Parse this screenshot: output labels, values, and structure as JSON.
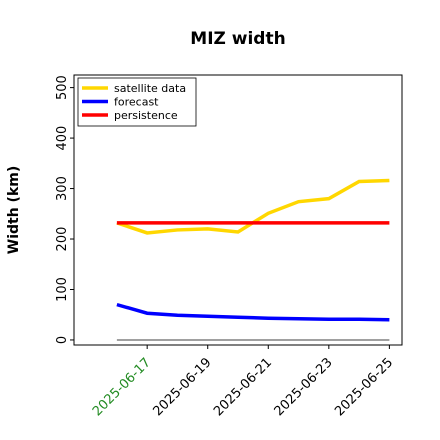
{
  "chart_data": {
    "type": "line",
    "title": "MIZ width",
    "ylabel": "Width (km)",
    "x": [
      "2025-06-16",
      "2025-06-17",
      "2025-06-18",
      "2025-06-19",
      "2025-06-20",
      "2025-06-21",
      "2025-06-22",
      "2025-06-23",
      "2025-06-24",
      "2025-06-25"
    ],
    "series": [
      {
        "name": "satellite data",
        "color": "#ffd700",
        "values": [
          232,
          212,
          218,
          220,
          214,
          251,
          274,
          280,
          314,
          316
        ]
      },
      {
        "name": "forecast",
        "color": "#0000ff",
        "values": [
          70,
          53,
          49,
          47,
          45,
          43,
          42,
          41,
          41,
          40
        ]
      },
      {
        "name": "persistence",
        "color": "#ff0000",
        "values": [
          232,
          232,
          232,
          232,
          232,
          232,
          232,
          232,
          232,
          232
        ]
      }
    ],
    "reference_line": {
      "value": 0,
      "color": "#808080"
    },
    "xlim": [
      "2025-06-14T14:00",
      "2025-06-25T10:00"
    ],
    "xticks": [
      "2025-06-17",
      "2025-06-19",
      "2025-06-21",
      "2025-06-23",
      "2025-06-25"
    ],
    "highlight_tick": {
      "tick": "2025-06-17",
      "color": "#228b22"
    },
    "ylim": [
      -10,
      525
    ],
    "yticks": [
      0,
      100,
      200,
      300,
      400,
      500
    ],
    "grid": false,
    "legend": "upper left"
  }
}
